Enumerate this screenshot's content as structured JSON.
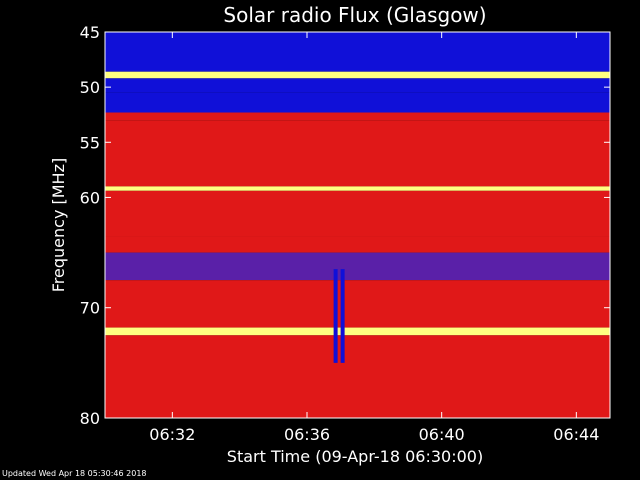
{
  "chart_data": {
    "type": "heatmap",
    "title": "Solar radio Flux (Glasgow)",
    "xlabel": "Start Time (09-Apr-18 06:30:00)",
    "ylabel": "Frequency [MHz]",
    "x_ticks": [
      "06:32",
      "06:36",
      "06:40",
      "06:44"
    ],
    "x_tick_minutes": [
      2,
      6,
      10,
      14
    ],
    "x_range_minutes": [
      0,
      15
    ],
    "y_ticks": [
      45,
      50,
      55,
      60,
      70,
      80
    ],
    "y_range_mhz": [
      45,
      80
    ],
    "colors": {
      "background": "#000000",
      "low": "#1010d8",
      "mid": "#5a20a8",
      "high": "#e01818",
      "peak": "#ffff80"
    },
    "bands": [
      {
        "from": 45.0,
        "to": 48.6,
        "level": "low"
      },
      {
        "from": 48.6,
        "to": 49.2,
        "level": "peak"
      },
      {
        "from": 49.2,
        "to": 50.5,
        "level": "low"
      },
      {
        "from": 50.5,
        "to": 52.3,
        "level": "low"
      },
      {
        "from": 52.3,
        "to": 53.0,
        "level": "high"
      },
      {
        "from": 53.0,
        "to": 59.0,
        "level": "high"
      },
      {
        "from": 59.0,
        "to": 59.4,
        "level": "peak"
      },
      {
        "from": 59.4,
        "to": 63.5,
        "level": "high"
      },
      {
        "from": 63.5,
        "to": 65.0,
        "level": "high"
      },
      {
        "from": 65.0,
        "to": 67.5,
        "level": "mid"
      },
      {
        "from": 67.5,
        "to": 71.8,
        "level": "high"
      },
      {
        "from": 71.8,
        "to": 72.5,
        "level": "peak"
      },
      {
        "from": 72.5,
        "to": 80.0,
        "level": "high"
      }
    ],
    "burst": {
      "minute": 6.85,
      "from_mhz": 66.5,
      "to_mhz": 75.0
    }
  },
  "footer": "Updated Wed Apr 18 05:30:46 2018"
}
